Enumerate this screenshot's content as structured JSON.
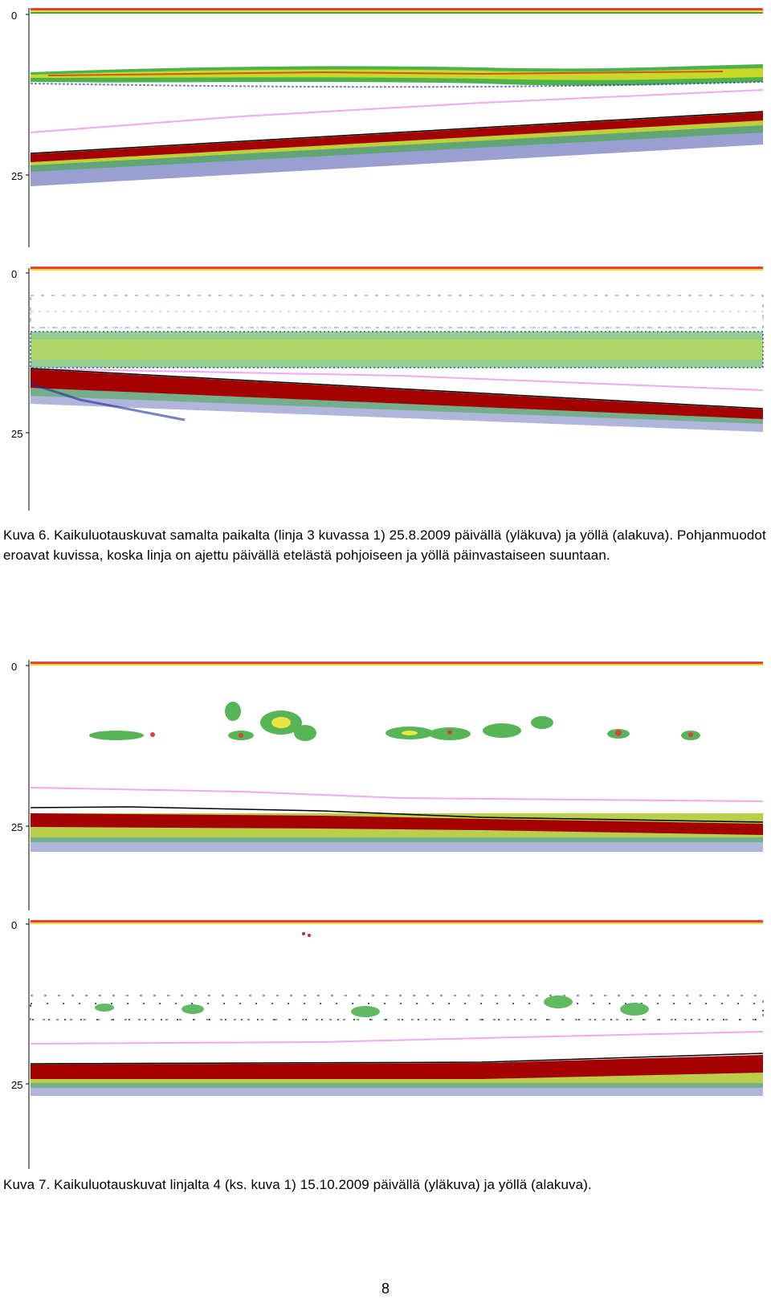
{
  "figure6": {
    "caption": "Kuva 6. Kaikuluotauskuvat samalta paikalta (linja 3 kuvassa 1) 25.8.2009 päivällä (yläkuva) ja yöllä (alakuva). Pohjanmuodot eroavat kuvissa, koska linja on ajettu päivällä etelästä pohjoiseen ja yöllä päinvastaiseen suuntaan.",
    "panels": [
      {
        "depth_ticks": [
          "0",
          "25"
        ],
        "label": "yläkuva"
      },
      {
        "depth_ticks": [
          "0",
          "25"
        ],
        "label": "alakuva"
      }
    ]
  },
  "figure7": {
    "caption": "Kuva 7. Kaikuluotauskuvat linjalta 4 (ks. kuva 1) 15.10.2009 päivällä (yläkuva) ja yöllä (alakuva).",
    "panels": [
      {
        "depth_ticks": [
          "0",
          "25"
        ],
        "label": "yläkuva"
      },
      {
        "depth_ticks": [
          "0",
          "25"
        ],
        "label": "alakuva"
      }
    ]
  },
  "page_number": "8",
  "colors": {
    "bottom": "#a40000",
    "bottom_edge": "#000000",
    "fish_green": "#3aa83a",
    "fish_yellow": "#e6e21e",
    "fish_red": "#d22020",
    "fish_blue": "#1e2a9a",
    "pink_line": "#f0a8f0",
    "surface": "#e84040"
  }
}
